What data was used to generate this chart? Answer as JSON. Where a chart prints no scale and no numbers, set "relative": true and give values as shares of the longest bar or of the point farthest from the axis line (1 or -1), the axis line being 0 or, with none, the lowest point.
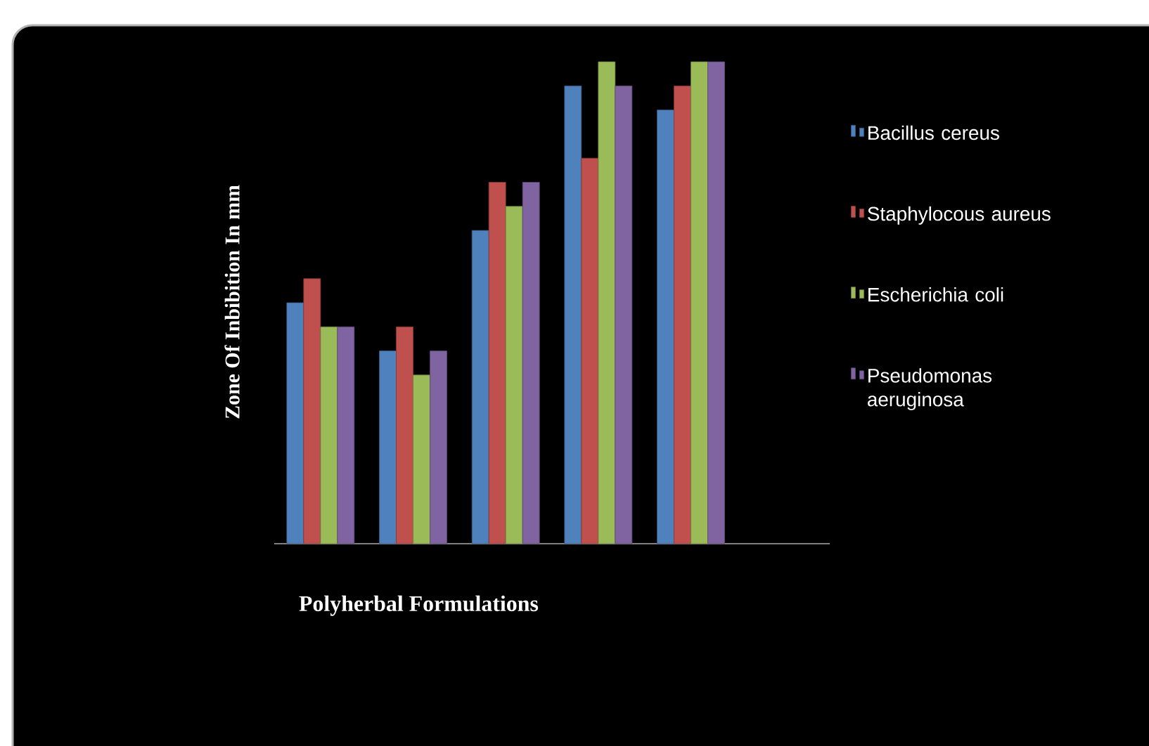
{
  "chart_data": {
    "type": "bar",
    "relative": true,
    "xlabel": "Polyherbal Formulations",
    "ylabel": "Zone Of Inbibition In mm",
    "categories": [
      null,
      null,
      null,
      null,
      null
    ],
    "legend": "right",
    "series": [
      {
        "name": "Bacillus cereus",
        "color": "#4f81bd",
        "values": [
          0.5,
          0.4,
          0.65,
          0.95,
          0.9
        ]
      },
      {
        "name": "Staphylocous aureus",
        "color": "#c0504d",
        "values": [
          0.55,
          0.45,
          0.75,
          0.8,
          0.95
        ]
      },
      {
        "name": "Escherichia coli",
        "color": "#9bbb59",
        "values": [
          0.45,
          0.35,
          0.7,
          1,
          1
        ]
      },
      {
        "name": "Pseudomonas aeruginosa",
        "color": "#8064a2",
        "values": [
          0.45,
          0.4,
          0.75,
          0.95,
          1
        ]
      }
    ]
  }
}
